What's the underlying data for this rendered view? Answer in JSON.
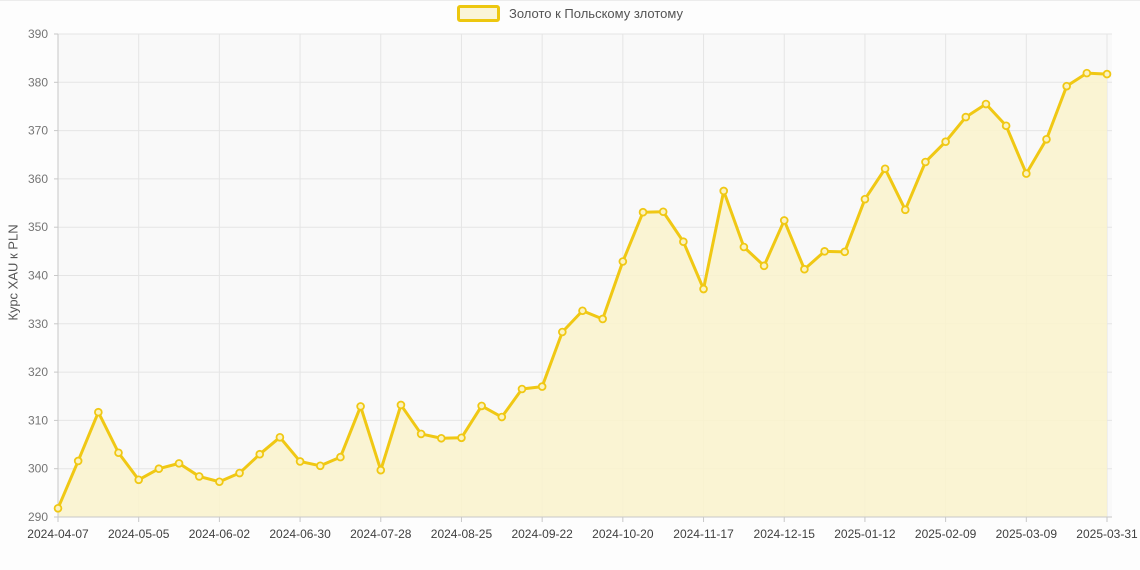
{
  "legend": {
    "label": "Золото к Польскому злотому"
  },
  "style": {
    "line_color": "#f0c814",
    "fill_color": "#faf3cd",
    "fill_opacity": 0.85,
    "marker_fill": "#fbf3c2",
    "grid_color": "#e5e5e5",
    "axis_color": "#c8c8c8",
    "plot_bg": "#f9f9f9",
    "page_bg": "#fdfdfd",
    "x_label_color": "#3f3f3f",
    "y_label_color": "#757575"
  },
  "chart_data": {
    "type": "area",
    "title": "",
    "xlabel": "",
    "ylabel": "Курс XAU к PLN",
    "ylim": [
      290,
      390
    ],
    "y_tick_step": 10,
    "grid": true,
    "legend_position": "top",
    "categories": [
      "2024-04-07",
      "2024-04-14",
      "2024-04-21",
      "2024-04-28",
      "2024-05-05",
      "2024-05-12",
      "2024-05-19",
      "2024-05-26",
      "2024-06-02",
      "2024-06-09",
      "2024-06-16",
      "2024-06-23",
      "2024-06-30",
      "2024-07-07",
      "2024-07-14",
      "2024-07-21",
      "2024-07-28",
      "2024-08-04",
      "2024-08-11",
      "2024-08-18",
      "2024-08-25",
      "2024-09-01",
      "2024-09-08",
      "2024-09-15",
      "2024-09-22",
      "2024-09-29",
      "2024-10-06",
      "2024-10-13",
      "2024-10-20",
      "2024-10-27",
      "2024-11-03",
      "2024-11-10",
      "2024-11-17",
      "2024-11-24",
      "2024-12-01",
      "2024-12-08",
      "2024-12-15",
      "2024-12-22",
      "2024-12-29",
      "2025-01-05",
      "2025-01-12",
      "2025-01-19",
      "2025-01-26",
      "2025-02-02",
      "2025-02-09",
      "2025-02-16",
      "2025-02-23",
      "2025-03-02",
      "2025-03-09",
      "2025-03-16",
      "2025-03-23",
      "2025-03-30",
      "2025-03-31"
    ],
    "x_tick_indices": [
      0,
      4,
      8,
      12,
      16,
      20,
      24,
      28,
      32,
      36,
      40,
      44,
      48,
      52
    ],
    "x_tick_labels": [
      "2024-04-07",
      "2024-05-05",
      "2024-06-02",
      "2024-06-30",
      "2024-07-28",
      "2024-08-25",
      "2024-09-22",
      "2024-10-20",
      "2024-11-17",
      "2024-12-15",
      "2025-01-12",
      "2025-02-09",
      "2025-03-09",
      "2025-03-31"
    ],
    "series": [
      {
        "name": "Золото к Польскому злотому",
        "values": [
          291.8,
          301.6,
          311.7,
          303.3,
          297.7,
          300.0,
          301.1,
          298.4,
          297.3,
          299.1,
          303.0,
          306.5,
          301.5,
          300.6,
          302.4,
          312.9,
          299.7,
          313.2,
          307.2,
          306.3,
          306.4,
          313.0,
          310.7,
          316.5,
          317.0,
          328.3,
          332.7,
          331.0,
          342.9,
          353.1,
          353.2,
          347.0,
          337.2,
          357.5,
          345.9,
          342.0,
          351.4,
          341.3,
          345.0,
          344.9,
          355.8,
          362.1,
          353.6,
          363.5,
          367.7,
          372.8,
          375.5,
          371.0,
          361.1,
          368.2,
          379.2,
          381.9,
          381.7
        ]
      }
    ]
  }
}
